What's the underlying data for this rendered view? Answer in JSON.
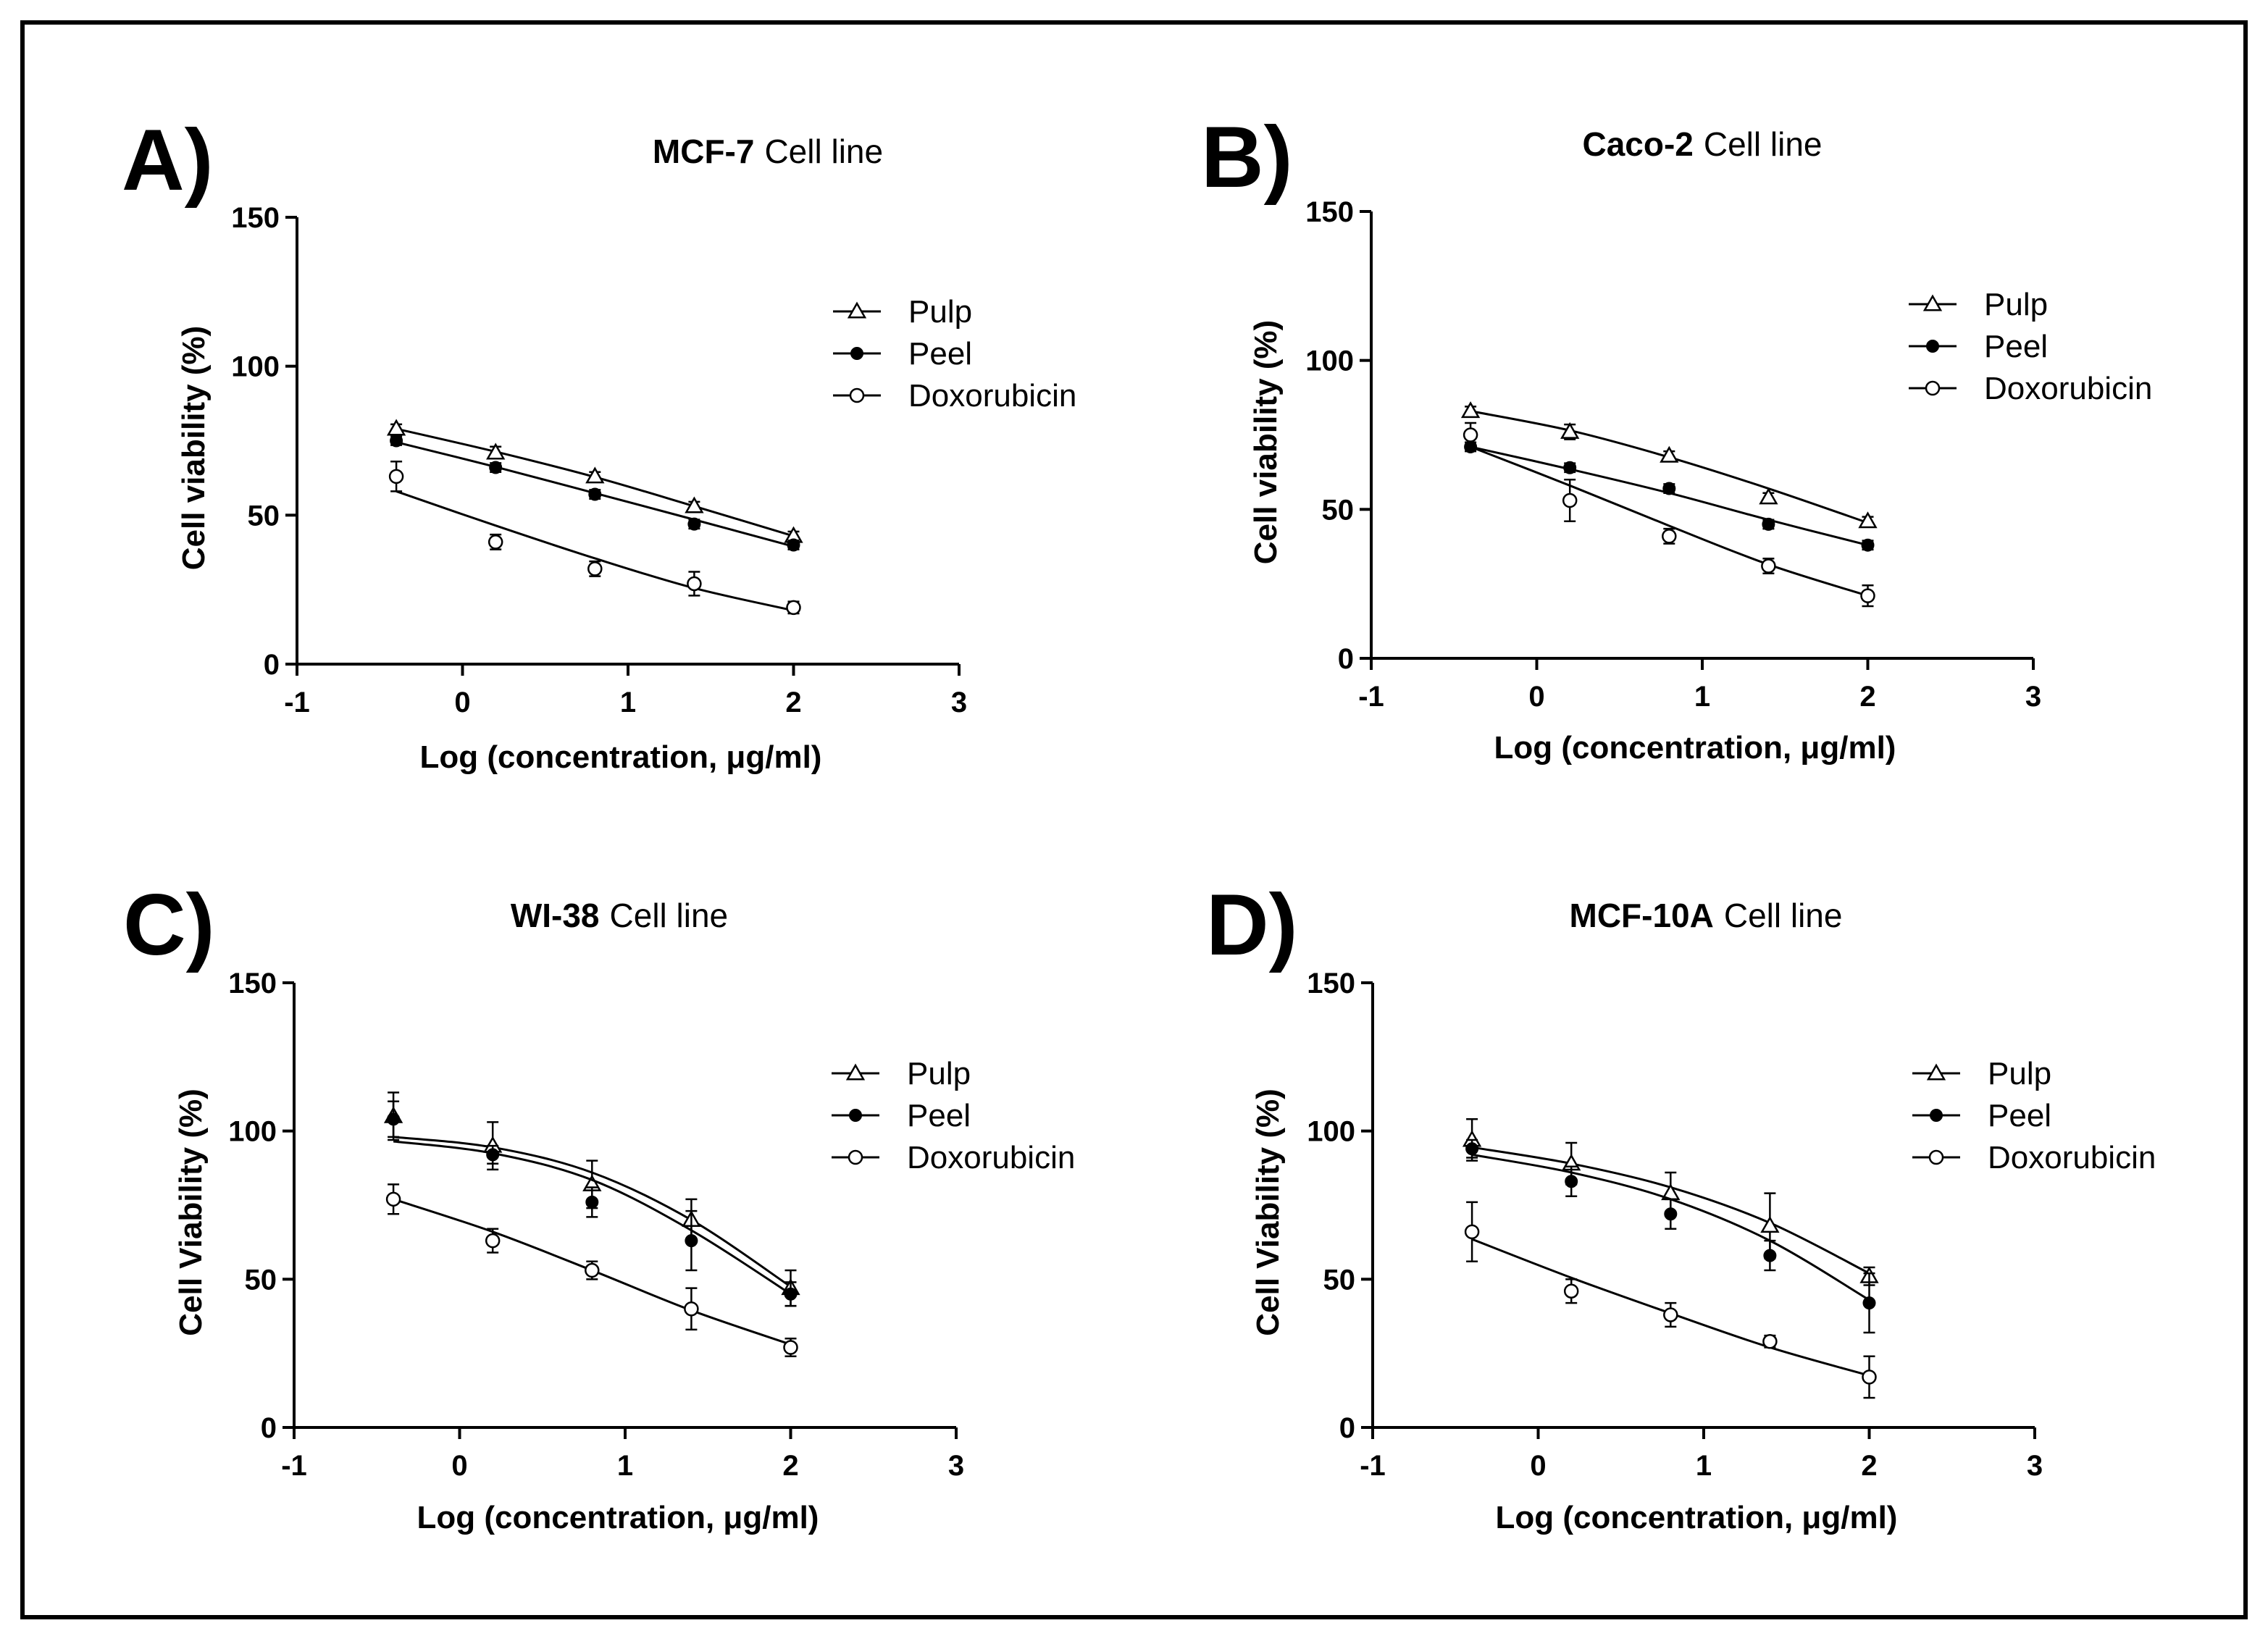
{
  "chart_data": [
    {
      "type": "line",
      "panel_label": "A)",
      "title_bold": "MCF-7",
      "title_rest": "Cell line",
      "xlabel": "Log (concentration, μg/ml)",
      "ylabel": "Cell viability (%)",
      "xlim": [
        -1,
        3
      ],
      "ylim": [
        0,
        150
      ],
      "x_ticks": [
        "-1",
        "0",
        "1",
        "2",
        "3"
      ],
      "y_ticks": [
        "0",
        "50",
        "100",
        "150"
      ],
      "legend_position": "top-right",
      "x": [
        -0.4,
        0.2,
        0.8,
        1.4,
        2.0
      ],
      "series": [
        {
          "name": "Pulp",
          "marker": "open-triangle",
          "values": [
            79,
            71,
            63,
            53,
            43
          ],
          "errors": [
            1.5,
            2,
            1.5,
            1.5,
            1.5
          ],
          "fit": [
            79,
            71.3,
            62.8,
            53,
            43
          ]
        },
        {
          "name": "Peel",
          "marker": "filled-circle",
          "values": [
            75,
            66,
            57,
            47,
            40
          ],
          "errors": [
            1.5,
            1.5,
            1.5,
            1.5,
            1.5
          ],
          "fit": [
            74.5,
            66.2,
            57.4,
            48.5,
            39.5
          ]
        },
        {
          "name": "Doxorubicin",
          "marker": "open-circle",
          "values": [
            63,
            41,
            32,
            27,
            19
          ],
          "errors": [
            5,
            2.5,
            2.5,
            4,
            2
          ],
          "fit": [
            58,
            46.5,
            35.5,
            25.5,
            18
          ]
        }
      ]
    },
    {
      "type": "line",
      "panel_label": "B)",
      "title_bold": "Caco-2",
      "title_rest": "Cell line",
      "xlabel": "Log (concentration, μg/ml)",
      "ylabel": "Cell viability (%)",
      "xlim": [
        -1,
        3
      ],
      "ylim": [
        0,
        150
      ],
      "x_ticks": [
        "-1",
        "0",
        "1",
        "2",
        "3"
      ],
      "y_ticks": [
        "0",
        "50",
        "100",
        "150"
      ],
      "legend_position": "top-right",
      "x": [
        -0.4,
        0.2,
        0.8,
        1.4,
        2.0
      ],
      "series": [
        {
          "name": "Pulp",
          "marker": "open-triangle",
          "values": [
            83,
            76,
            68,
            54,
            46
          ],
          "errors": [
            1.5,
            2.5,
            1.5,
            1.5,
            1.5
          ],
          "fit": [
            83,
            76.5,
            67.5,
            57,
            45.5
          ]
        },
        {
          "name": "Peel",
          "marker": "filled-circle",
          "values": [
            71,
            64,
            57,
            45,
            38
          ],
          "errors": [
            1.5,
            1.5,
            1.5,
            1.5,
            1.5
          ],
          "fit": [
            71,
            63.5,
            55.5,
            46.5,
            38
          ]
        },
        {
          "name": "Doxorubicin",
          "marker": "open-circle",
          "values": [
            75,
            53,
            41,
            31,
            21
          ],
          "errors": [
            4,
            7,
            2.5,
            2.5,
            3.5
          ],
          "fit": [
            71,
            58,
            44.5,
            31.5,
            21
          ]
        }
      ]
    },
    {
      "type": "line",
      "panel_label": "C)",
      "title_bold": "WI-38",
      "title_rest": "Cell line",
      "xlabel": "Log (concentration, μg/ml)",
      "ylabel": "Cell Viability (%)",
      "xlim": [
        -1,
        3
      ],
      "ylim": [
        0,
        150
      ],
      "x_ticks": [
        "-1",
        "0",
        "1",
        "2",
        "3"
      ],
      "y_ticks": [
        "0",
        "50",
        "100",
        "150"
      ],
      "legend_position": "top-right",
      "x": [
        -0.4,
        0.2,
        0.8,
        1.4,
        2.0
      ],
      "series": [
        {
          "name": "Pulp",
          "marker": "open-triangle",
          "values": [
            105,
            95,
            82,
            70,
            47
          ],
          "errors": [
            8,
            8,
            8,
            7,
            6
          ],
          "fit": [
            98,
            94.5,
            86,
            70,
            47.5
          ]
        },
        {
          "name": "Peel",
          "marker": "filled-circle",
          "values": [
            104,
            92,
            76,
            63,
            45
          ],
          "errors": [
            6,
            3,
            5,
            10,
            4
          ],
          "fit": [
            96.5,
            92.5,
            83.5,
            66.5,
            45
          ]
        },
        {
          "name": "Doxorubicin",
          "marker": "open-circle",
          "values": [
            77,
            63,
            53,
            40,
            27
          ],
          "errors": [
            5,
            4,
            3,
            7,
            3
          ],
          "fit": [
            77,
            66,
            53,
            39.5,
            28
          ]
        }
      ]
    },
    {
      "type": "line",
      "panel_label": "D)",
      "title_bold": "MCF-10A",
      "title_rest": "Cell line",
      "xlabel": "Log (concentration, μg/ml)",
      "ylabel": "Cell Viability (%)",
      "xlim": [
        -1,
        3
      ],
      "ylim": [
        0,
        150
      ],
      "x_ticks": [
        "-1",
        "0",
        "1",
        "2",
        "3"
      ],
      "y_ticks": [
        "0",
        "50",
        "100",
        "150"
      ],
      "legend_position": "top-right",
      "x": [
        -0.4,
        0.2,
        0.8,
        1.4,
        2.0
      ],
      "series": [
        {
          "name": "Pulp",
          "marker": "open-triangle",
          "values": [
            97,
            89,
            79,
            68,
            51
          ],
          "errors": [
            7,
            7,
            7,
            11,
            3
          ],
          "fit": [
            94.5,
            89,
            81,
            69,
            52
          ]
        },
        {
          "name": "Peel",
          "marker": "filled-circle",
          "values": [
            94,
            83,
            72,
            58,
            42
          ],
          "errors": [
            3,
            5,
            5,
            5,
            10
          ],
          "fit": [
            92,
            86,
            77,
            63,
            43
          ]
        },
        {
          "name": "Doxorubicin",
          "marker": "open-circle",
          "values": [
            66,
            46,
            38,
            29,
            17
          ],
          "errors": [
            10,
            4,
            4,
            2,
            7
          ],
          "fit": [
            63.5,
            50.5,
            38.5,
            27,
            17.5
          ]
        }
      ]
    }
  ]
}
